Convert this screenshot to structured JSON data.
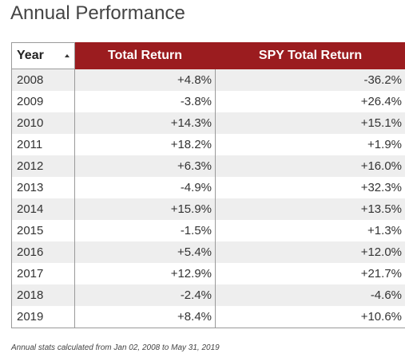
{
  "page": {
    "title": "Annual Performance"
  },
  "table": {
    "columns": {
      "year": "Year",
      "total_return": "Total Return",
      "spy_total_return": "SPY Total Return"
    },
    "sort": {
      "column": "Year",
      "direction": "ascending",
      "icon": "sort-ascending-icon"
    },
    "rows": [
      {
        "year": "2008",
        "total_return": "+4.8%",
        "spy_total_return": "-36.2%"
      },
      {
        "year": "2009",
        "total_return": "-3.8%",
        "spy_total_return": "+26.4%"
      },
      {
        "year": "2010",
        "total_return": "+14.3%",
        "spy_total_return": "+15.1%"
      },
      {
        "year": "2011",
        "total_return": "+18.2%",
        "spy_total_return": "+1.9%"
      },
      {
        "year": "2012",
        "total_return": "+6.3%",
        "spy_total_return": "+16.0%"
      },
      {
        "year": "2013",
        "total_return": "-4.9%",
        "spy_total_return": "+32.3%"
      },
      {
        "year": "2014",
        "total_return": "+15.9%",
        "spy_total_return": "+13.5%"
      },
      {
        "year": "2015",
        "total_return": "-1.5%",
        "spy_total_return": "+1.3%"
      },
      {
        "year": "2016",
        "total_return": "+5.4%",
        "spy_total_return": "+12.0%"
      },
      {
        "year": "2017",
        "total_return": "+12.9%",
        "spy_total_return": "+21.7%"
      },
      {
        "year": "2018",
        "total_return": "-2.4%",
        "spy_total_return": "-4.6%"
      },
      {
        "year": "2019",
        "total_return": "+8.4%",
        "spy_total_return": "+10.6%"
      }
    ]
  },
  "footnote": "Annual stats calculated from Jan 02, 2008 to May 31, 2019",
  "colors": {
    "header_accent": "#9b1c1f",
    "row_stripe": "#eeeeee",
    "border": "#9a9a9a"
  }
}
